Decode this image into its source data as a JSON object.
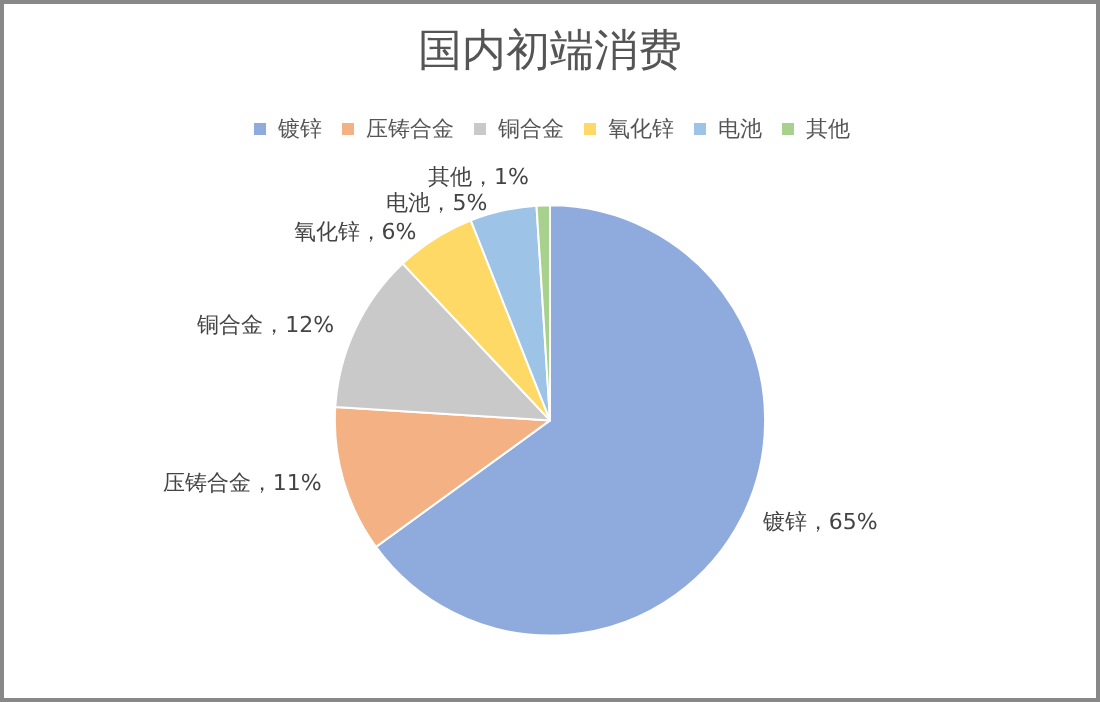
{
  "chart_data": {
    "type": "pie",
    "title": "国内初端消费",
    "categories": [
      "镀锌",
      "压铸合金",
      "铜合金",
      "氧化锌",
      "电池",
      "其他"
    ],
    "values": [
      65,
      11,
      12,
      6,
      5,
      1
    ],
    "colors": [
      "#8faadc",
      "#f4b183",
      "#c9c9c9",
      "#ffd966",
      "#9dc3e6",
      "#a9d18e"
    ],
    "value_labels": [
      "镀锌，65%",
      "压铸合金，11%",
      "铜合金，12%",
      "氧化锌，6%",
      "电池，5%",
      "其他，1%"
    ],
    "legend": "top"
  }
}
